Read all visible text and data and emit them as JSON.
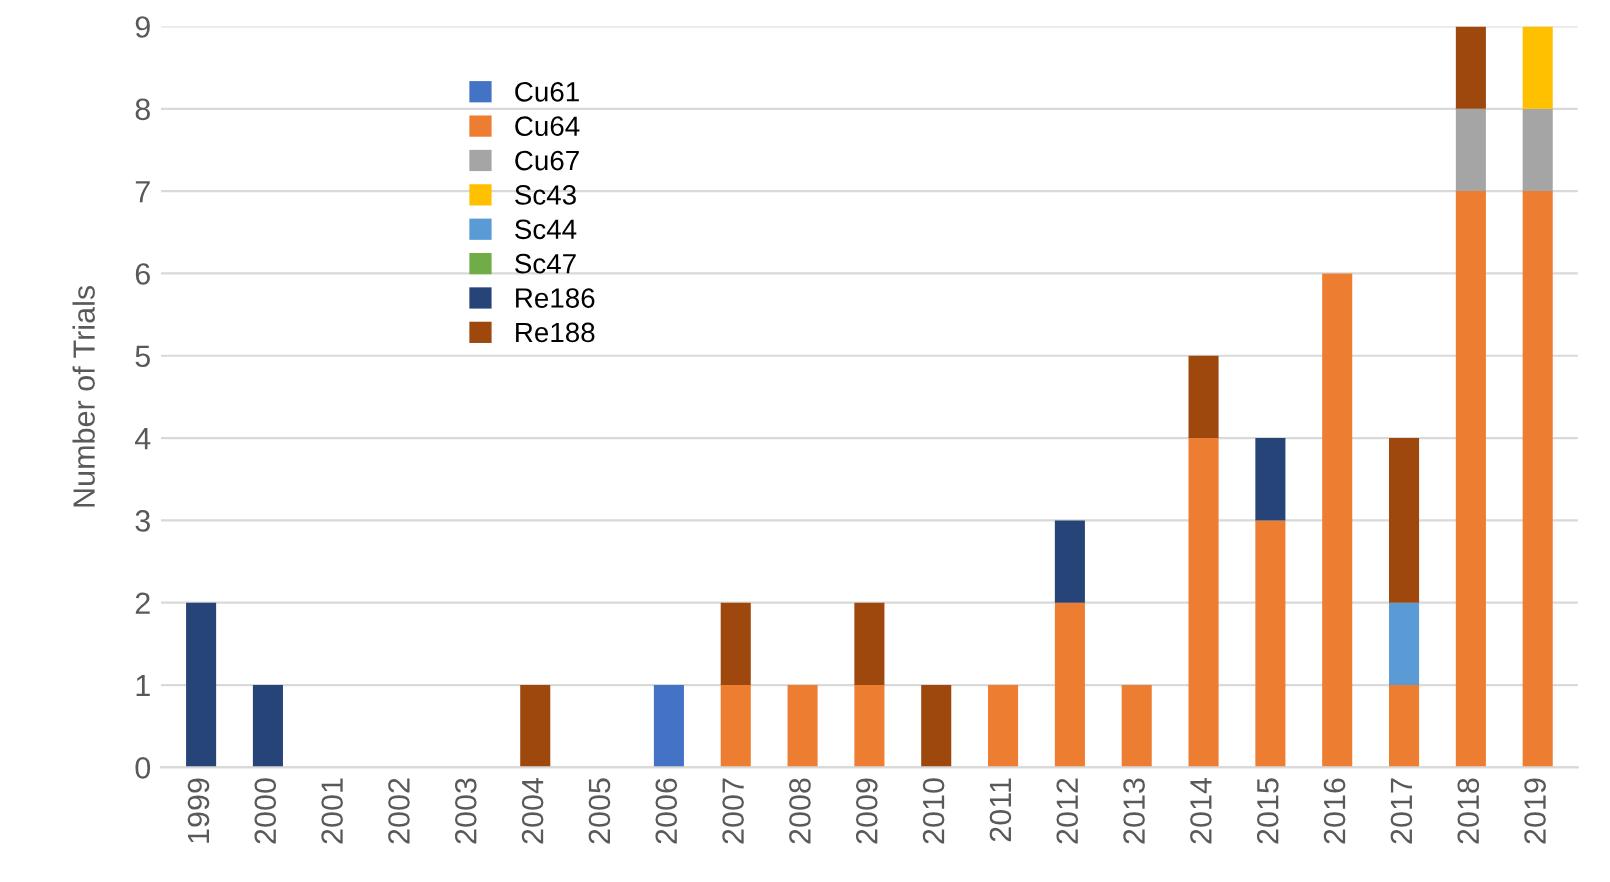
{
  "chart_data": {
    "type": "bar",
    "stacked": true,
    "ylabel": "Number of Trials",
    "categories": [
      "1999",
      "2000",
      "2001",
      "2002",
      "2003",
      "2004",
      "2005",
      "2006",
      "2007",
      "2008",
      "2009",
      "2010",
      "2011",
      "2012",
      "2013",
      "2014",
      "2015",
      "2016",
      "2017",
      "2018",
      "2019"
    ],
    "series": [
      {
        "name": "Cu61",
        "color": "#4472c4",
        "values": [
          0,
          0,
          0,
          0,
          0,
          0,
          0,
          1,
          0,
          0,
          0,
          0,
          0,
          0,
          0,
          0,
          0,
          0,
          0,
          0,
          0
        ]
      },
      {
        "name": "Cu64",
        "color": "#ed7d31",
        "values": [
          0,
          0,
          0,
          0,
          0,
          0,
          0,
          0,
          1,
          1,
          1,
          0,
          1,
          2,
          1,
          4,
          3,
          6,
          1,
          7,
          7
        ]
      },
      {
        "name": "Cu67",
        "color": "#a5a5a5",
        "values": [
          0,
          0,
          0,
          0,
          0,
          0,
          0,
          0,
          0,
          0,
          0,
          0,
          0,
          0,
          0,
          0,
          0,
          0,
          0,
          1,
          1
        ]
      },
      {
        "name": "Sc43",
        "color": "#ffc000",
        "values": [
          0,
          0,
          0,
          0,
          0,
          0,
          0,
          0,
          0,
          0,
          0,
          0,
          0,
          0,
          0,
          0,
          0,
          0,
          0,
          0,
          1
        ]
      },
      {
        "name": "Sc44",
        "color": "#5b9bd5",
        "values": [
          0,
          0,
          0,
          0,
          0,
          0,
          0,
          0,
          0,
          0,
          0,
          0,
          0,
          0,
          0,
          0,
          0,
          0,
          1,
          0,
          0
        ]
      },
      {
        "name": "Sc47",
        "color": "#70ad47",
        "values": [
          0,
          0,
          0,
          0,
          0,
          0,
          0,
          0,
          0,
          0,
          0,
          0,
          0,
          0,
          0,
          0,
          0,
          0,
          0,
          0,
          0
        ]
      },
      {
        "name": "Re186",
        "color": "#264478",
        "values": [
          2,
          1,
          0,
          0,
          0,
          0,
          0,
          0,
          0,
          0,
          0,
          0,
          0,
          1,
          0,
          0,
          1,
          0,
          0,
          0,
          0
        ]
      },
      {
        "name": "Re188",
        "color": "#9e480e",
        "values": [
          0,
          0,
          0,
          0,
          0,
          1,
          0,
          0,
          1,
          0,
          1,
          1,
          0,
          0,
          0,
          1,
          0,
          0,
          2,
          1,
          0
        ]
      }
    ],
    "ylim": [
      0,
      9
    ],
    "yticks": [
      0,
      1,
      2,
      3,
      4,
      5,
      6,
      7,
      8,
      9
    ],
    "grid": "y",
    "legend": "top left"
  }
}
